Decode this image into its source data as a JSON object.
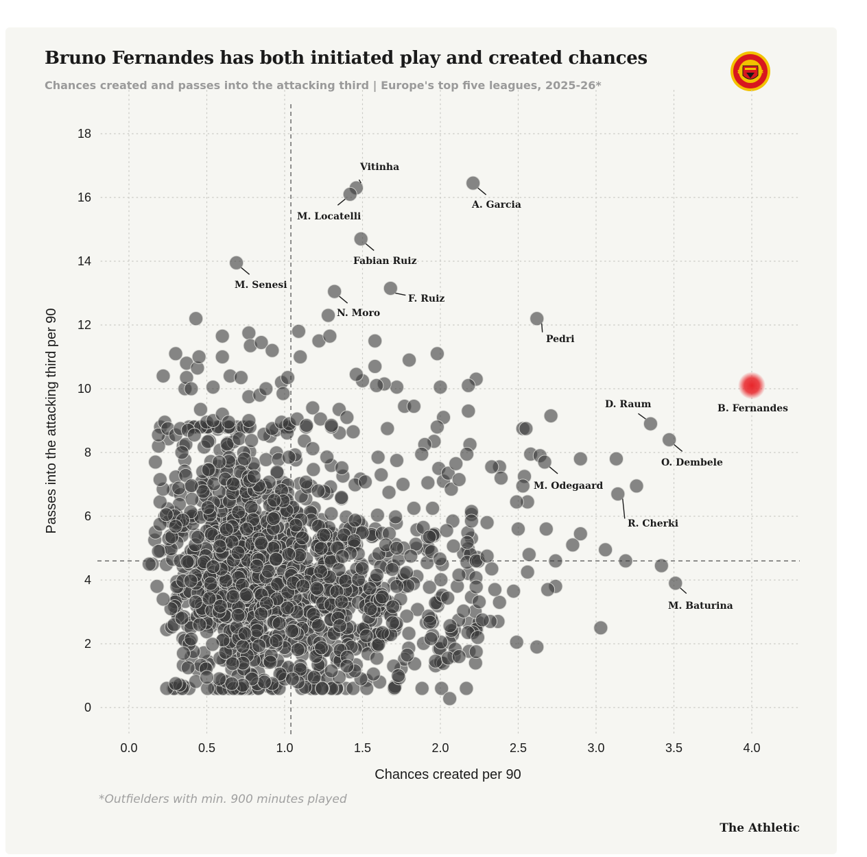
{
  "header": {
    "title": "Bruno Fernandes has both initiated play and created chances",
    "subtitle": "Chances created and passes into the attacking third | Europe's top five leagues, 2025-26*",
    "logo_icon": "manchester-united-crest-icon"
  },
  "footer": {
    "footnote": "*Outfielders with min. 900 minutes played",
    "brand": "The Athletic"
  },
  "colors": {
    "background": "#f6f6f2",
    "dot": "#3a3a3a",
    "highlight": "#e8262b",
    "text": "#1a1a1a",
    "muted": "#9a9a9a"
  },
  "chart_data": {
    "type": "scatter",
    "xlabel": "Chances created per 90",
    "ylabel": "Passes into the attacking third per 90",
    "xlim": [
      -0.18,
      4.3
    ],
    "ylim": [
      -0.9,
      18.5
    ],
    "xticks": [
      0.0,
      0.5,
      1.0,
      1.5,
      2.0,
      2.5,
      3.0,
      3.5,
      4.0
    ],
    "xtick_labels": [
      "0.0",
      "0.5",
      "1.0",
      "1.5",
      "2.0",
      "2.5",
      "3.0",
      "3.5",
      "4.0"
    ],
    "yticks": [
      0,
      2,
      4,
      6,
      8,
      10,
      12,
      14,
      16,
      18
    ],
    "ytick_labels": [
      "0",
      "2",
      "4",
      "6",
      "8",
      "10",
      "12",
      "14",
      "16",
      "18"
    ],
    "grid": true,
    "reference_lines": {
      "x_average": 1.04,
      "y_average": 4.6
    },
    "highlight": {
      "name": "B. Fernandes",
      "x": 4.0,
      "y": 10.1
    },
    "labeled_points": [
      {
        "name": "Vitinha",
        "x": 1.46,
        "y": 16.3
      },
      {
        "name": "M. Locatelli",
        "x": 1.42,
        "y": 16.1
      },
      {
        "name": "A. Garcia",
        "x": 2.21,
        "y": 16.45
      },
      {
        "name": "Fabian Ruiz",
        "x": 1.49,
        "y": 14.7
      },
      {
        "name": "M. Senesi",
        "x": 0.69,
        "y": 13.95
      },
      {
        "name": "F. Ruiz",
        "x": 1.68,
        "y": 13.15
      },
      {
        "name": "N. Moro",
        "x": 1.32,
        "y": 13.05
      },
      {
        "name": "Pedri",
        "x": 2.62,
        "y": 12.2
      },
      {
        "name": "D. Raum",
        "x": 3.35,
        "y": 8.9
      },
      {
        "name": "O. Dembele",
        "x": 3.47,
        "y": 8.4
      },
      {
        "name": "M. Odegaard",
        "x": 2.67,
        "y": 7.7
      },
      {
        "name": "R. Cherki",
        "x": 3.14,
        "y": 6.7
      },
      {
        "name": "M. Baturina",
        "x": 3.51,
        "y": 3.9
      }
    ],
    "other_points": [
      [
        3.03,
        2.5
      ],
      [
        3.06,
        4.95
      ],
      [
        3.19,
        4.6
      ],
      [
        3.42,
        4.45
      ],
      [
        3.26,
        6.95
      ],
      [
        3.13,
        7.8
      ],
      [
        2.9,
        7.8
      ],
      [
        2.9,
        5.45
      ],
      [
        2.85,
        5.1
      ],
      [
        2.74,
        4.6
      ],
      [
        2.74,
        3.8
      ],
      [
        2.69,
        3.7
      ],
      [
        2.68,
        5.6
      ],
      [
        2.62,
        1.9
      ],
      [
        2.56,
        4.25
      ],
      [
        2.57,
        4.8
      ],
      [
        2.54,
        7.25
      ],
      [
        2.56,
        6.45
      ],
      [
        2.53,
        6.95
      ],
      [
        2.53,
        8.75
      ],
      [
        2.58,
        7.95
      ],
      [
        2.64,
        7.9
      ],
      [
        2.71,
        9.15
      ],
      [
        2.49,
        6.45
      ],
      [
        2.5,
        5.6
      ],
      [
        2.47,
        3.65
      ],
      [
        2.49,
        2.05
      ],
      [
        2.37,
        2.7
      ],
      [
        2.32,
        2.7
      ],
      [
        2.38,
        3.3
      ],
      [
        2.35,
        3.7
      ],
      [
        2.33,
        4.35
      ],
      [
        2.38,
        7.55
      ],
      [
        2.33,
        7.55
      ],
      [
        2.39,
        7.2
      ],
      [
        2.3,
        5.8
      ],
      [
        2.23,
        10.3
      ],
      [
        2.18,
        10.1
      ],
      [
        2.18,
        9.3
      ],
      [
        2.19,
        8.25
      ],
      [
        2.17,
        7.95
      ],
      [
        2.2,
        6.15
      ],
      [
        2.2,
        5.85
      ],
      [
        2.23,
        4.6
      ],
      [
        2.24,
        2.2
      ],
      [
        2.23,
        1.75
      ],
      [
        2.27,
        2.75
      ],
      [
        2.3,
        4.75
      ],
      [
        1.98,
        11.1
      ],
      [
        2.0,
        10.05
      ],
      [
        2.02,
        9.1
      ],
      [
        1.98,
        8.8
      ],
      [
        1.96,
        8.35
      ],
      [
        1.99,
        7.5
      ],
      [
        2.02,
        7.1
      ],
      [
        2.05,
        7.35
      ],
      [
        2.1,
        7.65
      ],
      [
        2.07,
        6.85
      ],
      [
        2.12,
        7.15
      ],
      [
        2.08,
        5.85
      ],
      [
        2.04,
        5.55
      ],
      [
        2.05,
        1.55
      ],
      [
        2.06,
        0.28
      ],
      [
        2.12,
        1.6
      ],
      [
        1.9,
        8.25
      ],
      [
        1.88,
        7.95
      ],
      [
        1.92,
        7.05
      ],
      [
        1.95,
        6.25
      ],
      [
        1.89,
        5.65
      ],
      [
        1.93,
        5.35
      ],
      [
        1.83,
        6.25
      ],
      [
        1.81,
        4.75
      ],
      [
        1.77,
        9.45
      ],
      [
        1.8,
        10.9
      ],
      [
        1.72,
        10.05
      ],
      [
        1.64,
        10.15
      ],
      [
        1.58,
        10.7
      ],
      [
        1.58,
        11.5
      ],
      [
        1.66,
        8.75
      ],
      [
        1.72,
        7.75
      ],
      [
        1.76,
        7.0
      ],
      [
        1.67,
        6.75
      ],
      [
        1.62,
        7.3
      ],
      [
        1.6,
        7.85
      ],
      [
        1.65,
        5.1
      ],
      [
        1.72,
        5.0
      ],
      [
        1.72,
        3.8
      ],
      [
        1.7,
        1.3
      ],
      [
        1.73,
        1.0
      ],
      [
        1.61,
        0.8
      ],
      [
        1.57,
        1.05
      ],
      [
        1.49,
        0.9
      ],
      [
        1.45,
        1.15
      ],
      [
        1.4,
        1.3
      ],
      [
        1.35,
        0.95
      ],
      [
        1.3,
        1.15
      ],
      [
        1.24,
        0.6
      ],
      [
        1.19,
        0.95
      ],
      [
        1.1,
        1.2
      ],
      [
        1.05,
        0.9
      ],
      [
        0.97,
        1.05
      ],
      [
        0.92,
        0.75
      ],
      [
        0.87,
        0.8
      ],
      [
        0.79,
        0.9
      ],
      [
        0.73,
        0.7
      ],
      [
        0.66,
        0.75
      ],
      [
        0.58,
        0.9
      ],
      [
        0.5,
        0.95
      ],
      [
        0.3,
        0.75
      ],
      [
        0.38,
        1.25
      ],
      [
        0.35,
        1.7
      ],
      [
        0.4,
        2.15
      ],
      [
        0.29,
        2.6
      ],
      [
        0.34,
        2.8
      ],
      [
        0.27,
        3.1
      ],
      [
        0.22,
        3.4
      ],
      [
        0.18,
        3.8
      ],
      [
        0.15,
        4.5
      ],
      [
        0.19,
        4.9
      ],
      [
        0.17,
        5.5
      ],
      [
        0.2,
        5.75
      ],
      [
        0.24,
        6.05
      ],
      [
        0.2,
        6.45
      ],
      [
        0.22,
        6.85
      ],
      [
        0.2,
        7.15
      ],
      [
        0.17,
        7.7
      ],
      [
        0.19,
        8.2
      ],
      [
        0.19,
        8.55
      ],
      [
        0.23,
        8.95
      ],
      [
        0.25,
        8.75
      ],
      [
        0.3,
        8.55
      ],
      [
        0.33,
        8.75
      ],
      [
        0.38,
        8.7
      ],
      [
        0.42,
        8.55
      ],
      [
        0.36,
        10.0
      ],
      [
        0.37,
        10.35
      ],
      [
        0.4,
        10.0
      ],
      [
        0.37,
        10.8
      ],
      [
        0.44,
        10.65
      ],
      [
        0.45,
        11.0
      ],
      [
        0.3,
        11.1
      ],
      [
        0.22,
        10.4
      ],
      [
        0.43,
        12.2
      ],
      [
        0.6,
        11.65
      ],
      [
        0.6,
        11.0
      ],
      [
        0.54,
        10.05
      ],
      [
        0.65,
        10.4
      ],
      [
        0.72,
        10.35
      ],
      [
        0.77,
        11.75
      ],
      [
        0.78,
        11.35
      ],
      [
        0.85,
        11.45
      ],
      [
        0.92,
        11.2
      ],
      [
        0.77,
        9.75
      ],
      [
        0.84,
        9.8
      ],
      [
        0.88,
        10.0
      ],
      [
        0.98,
        10.2
      ],
      [
        1.02,
        10.35
      ],
      [
        0.99,
        9.85
      ],
      [
        1.09,
        11.8
      ],
      [
        1.1,
        11.0
      ],
      [
        1.22,
        11.5
      ],
      [
        1.29,
        11.65
      ],
      [
        1.28,
        12.3
      ],
      [
        0.46,
        9.35
      ],
      [
        0.5,
        8.95
      ],
      [
        0.54,
        9.0
      ],
      [
        0.6,
        9.2
      ],
      [
        0.64,
        8.95
      ],
      [
        0.77,
        9.0
      ],
      [
        0.92,
        8.75
      ],
      [
        0.98,
        8.95
      ],
      [
        1.03,
        8.9
      ],
      [
        1.08,
        9.05
      ],
      [
        1.14,
        8.85
      ],
      [
        1.18,
        9.4
      ],
      [
        1.23,
        9.05
      ],
      [
        1.3,
        8.85
      ],
      [
        1.35,
        9.35
      ],
      [
        1.4,
        9.1
      ],
      [
        1.44,
        8.65
      ],
      [
        1.5,
        10.25
      ],
      [
        1.46,
        10.45
      ],
      [
        1.59,
        10.1
      ],
      [
        1.83,
        9.45
      ],
      [
        2.55,
        8.75
      ],
      [
        0.13,
        4.5
      ]
    ],
    "cluster_seed": 20251
  }
}
